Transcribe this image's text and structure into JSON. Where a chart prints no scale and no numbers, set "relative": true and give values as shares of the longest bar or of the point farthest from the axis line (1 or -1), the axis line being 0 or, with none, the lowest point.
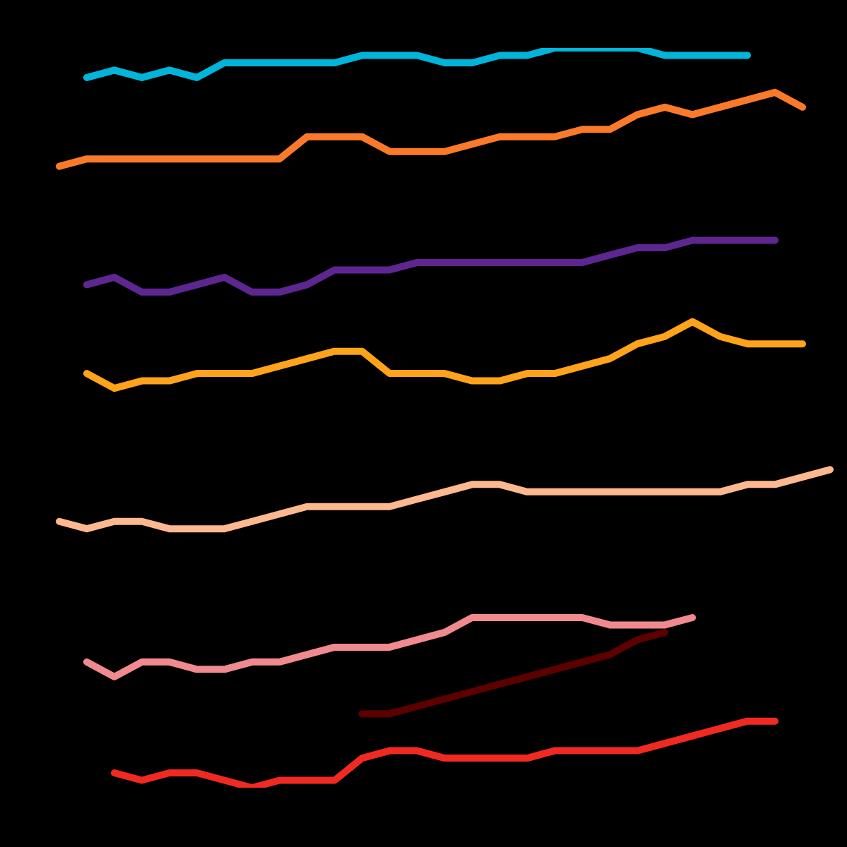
{
  "chart_data": {
    "type": "line",
    "relative": true,
    "legend": false,
    "marker": "none",
    "line_style": "solid",
    "categories": [
      null,
      null,
      null,
      null,
      null,
      null,
      null,
      null,
      null,
      null,
      null,
      null,
      null,
      null,
      null,
      null,
      null,
      null,
      null,
      null,
      null,
      null,
      null,
      null,
      null,
      null,
      null,
      null,
      null
    ],
    "series": [
      {
        "color": "#00b5d9",
        "values": [
          null,
          0.96,
          0.97,
          0.96,
          0.97,
          0.96,
          0.98,
          0.98,
          0.98,
          0.98,
          0.98,
          0.99,
          0.99,
          0.99,
          0.98,
          0.98,
          0.99,
          0.99,
          1,
          1,
          1,
          1,
          0.99,
          0.99,
          0.99,
          0.99,
          null,
          null,
          null
        ]
      },
      {
        "color": "#fb7a2a",
        "values": [
          0.84,
          0.85,
          0.85,
          0.85,
          0.85,
          0.85,
          0.85,
          0.85,
          0.85,
          0.88,
          0.88,
          0.88,
          0.86,
          0.86,
          0.86,
          0.87,
          0.88,
          0.88,
          0.88,
          0.89,
          0.89,
          0.91,
          0.92,
          0.91,
          0.92,
          0.93,
          0.94,
          0.92,
          null
        ]
      },
      {
        "color": "#5e2690",
        "values": [
          null,
          0.68,
          0.69,
          0.67,
          0.67,
          0.68,
          0.69,
          0.67,
          0.67,
          0.68,
          0.7,
          0.7,
          0.7,
          0.71,
          0.71,
          0.71,
          0.71,
          0.71,
          0.71,
          0.71,
          0.72,
          0.73,
          0.73,
          0.74,
          0.74,
          0.74,
          0.74,
          null,
          null
        ]
      },
      {
        "color": "#ffa31a",
        "values": [
          null,
          0.56,
          0.54,
          0.55,
          0.55,
          0.56,
          0.56,
          0.56,
          0.57,
          0.58,
          0.59,
          0.59,
          0.56,
          0.56,
          0.56,
          0.55,
          0.55,
          0.56,
          0.56,
          0.57,
          0.58,
          0.6,
          0.61,
          0.63,
          0.61,
          0.6,
          0.6,
          0.6,
          null
        ]
      },
      {
        "color": "#fdb88f",
        "values": [
          0.36,
          0.35,
          0.36,
          0.36,
          0.35,
          0.35,
          0.35,
          0.36,
          0.37,
          0.38,
          0.38,
          0.38,
          0.38,
          0.39,
          0.4,
          0.41,
          0.41,
          0.4,
          0.4,
          0.4,
          0.4,
          0.4,
          0.4,
          0.4,
          0.4,
          0.41,
          0.41,
          0.42,
          0.43
        ]
      },
      {
        "color": "#f08a8f",
        "values": [
          null,
          0.17,
          0.15,
          0.17,
          0.17,
          0.16,
          0.16,
          0.17,
          0.17,
          0.18,
          0.19,
          0.19,
          0.19,
          0.2,
          0.21,
          0.23,
          0.23,
          0.23,
          0.23,
          0.23,
          0.22,
          0.22,
          0.22,
          0.23,
          null,
          null,
          null,
          null,
          null
        ]
      },
      {
        "color": "#5c0000",
        "values": [
          null,
          null,
          null,
          null,
          null,
          null,
          null,
          null,
          null,
          null,
          null,
          0.1,
          0.1,
          0.11,
          0.12,
          0.13,
          0.14,
          0.15,
          0.16,
          0.17,
          0.18,
          0.2,
          0.21,
          null,
          null,
          null,
          null,
          null,
          null
        ]
      },
      {
        "color": "#f02a20",
        "values": [
          null,
          null,
          0.02,
          0.01,
          0.02,
          0.02,
          0.01,
          0,
          0.01,
          0.01,
          0.01,
          0.04,
          0.05,
          0.05,
          0.04,
          0.04,
          0.04,
          0.04,
          0.05,
          0.05,
          0.05,
          0.05,
          0.06,
          0.07,
          0.08,
          0.09,
          0.09,
          null,
          null
        ]
      }
    ]
  }
}
